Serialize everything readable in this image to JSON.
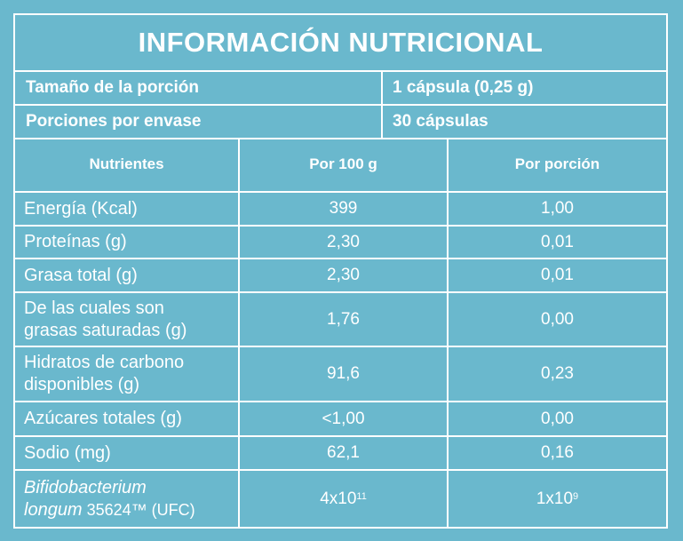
{
  "title": "INFORMACIÓN NUTRICIONAL",
  "serving": {
    "size_label": "Tamaño de la porción",
    "size_value": "1 cápsula (0,25 g)",
    "per_pack_label": "Porciones por envase",
    "per_pack_value": "30 cápsulas"
  },
  "table": {
    "headers": [
      "Nutrientes",
      "Por 100 g",
      "Por porción"
    ],
    "rows": [
      {
        "nutrient": "Energía (Kcal)",
        "per100": "399",
        "perServing": "1,00"
      },
      {
        "nutrient": "Proteínas (g)",
        "per100": "2,30",
        "perServing": "0,01"
      },
      {
        "nutrient": "Grasa total (g)",
        "per100": "2,30",
        "perServing": "0,01"
      },
      {
        "nutrient_line1": "De las cuales son",
        "nutrient_line2": "grasas saturadas (g)",
        "per100": "1,76",
        "perServing": "0,00"
      },
      {
        "nutrient_line1": "Hidratos de carbono",
        "nutrient_line2": "disponibles (g)",
        "per100": "91,6",
        "perServing": "0,23"
      },
      {
        "nutrient": "Azúcares totales (g)",
        "per100": "<1,00",
        "perServing": "0,00"
      },
      {
        "nutrient": "Sodio (mg)",
        "per100": "62,1",
        "perServing": "0,16"
      },
      {
        "nutrient_italic_1": "Bifidobacterium",
        "nutrient_italic_2": "longum",
        "nutrient_suffix": " 35624™ (UFC)",
        "per100_base": "4x10",
        "per100_exp": "11",
        "perServing_base": "1x10",
        "perServing_exp": "9"
      }
    ]
  }
}
